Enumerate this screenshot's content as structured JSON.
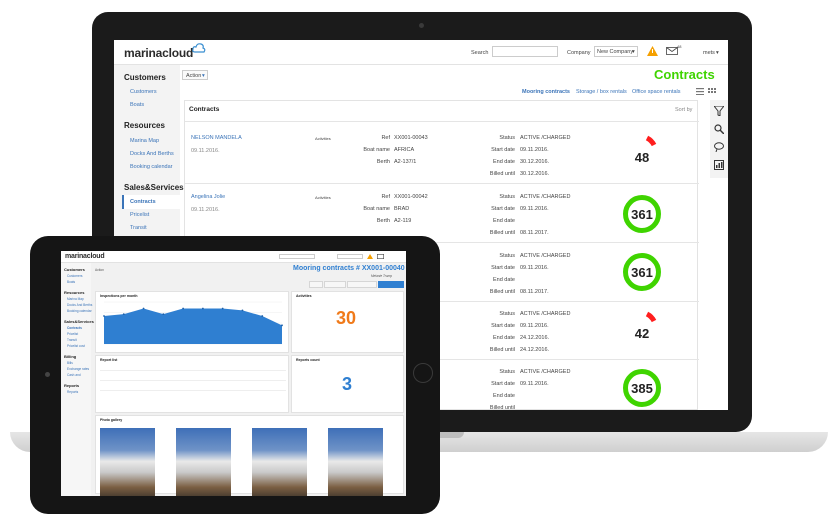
{
  "laptop": {
    "logo": "marinacloud",
    "search_label": "Search",
    "company_label": "Company",
    "company_value": "New Company",
    "mail_count": "48",
    "user": "mets",
    "action_label": "Action",
    "page_title": "Contracts",
    "tabs": [
      "Mooring contracts",
      "Storage / box rentals",
      "Office space rentals"
    ],
    "panel_title": "Contracts",
    "sort_label": "Sort by",
    "sidebar": {
      "sections": [
        {
          "title": "Customers",
          "items": [
            "Customers",
            "Boats"
          ]
        },
        {
          "title": "Resources",
          "items": [
            "Marina Map",
            "Docks And Berths",
            "Booking calendar"
          ]
        },
        {
          "title": "Sales&Services",
          "items": [
            "Contracts",
            "Pricelist",
            "Transit"
          ]
        }
      ]
    },
    "contracts": [
      {
        "name": "NELSON MANDELA",
        "date": "09.11.2016.",
        "activities": "Activities",
        "ref": "XX001-00043",
        "boat": "AFRICA",
        "berth": "A2-137/1",
        "status": "ACTIVE /CHARGED",
        "start": "09.11.2016.",
        "end": "30.12.2016.",
        "billed": "30.12.2016.",
        "days": "48"
      },
      {
        "name": "Angelina Jolie",
        "date": "09.11.2016.",
        "activities": "Activities",
        "ref": "XX001-00042",
        "boat": "BRAD",
        "berth": "A2-119",
        "status": "ACTIVE /CHARGED",
        "start": "09.11.2016.",
        "end": "",
        "billed": "08.11.2017.",
        "days": "361"
      },
      {
        "status": "ACTIVE /CHARGED",
        "start": "09.11.2016.",
        "end": "",
        "billed": "08.11.2017.",
        "days": "361"
      },
      {
        "status": "ACTIVE /CHARGED",
        "start": "09.11.2016.",
        "end": "24.12.2016.",
        "billed": "24.12.2016.",
        "days": "42"
      },
      {
        "status": "ACTIVE /CHARGED",
        "start": "09.11.2016.",
        "end": "",
        "billed": "",
        "days": "385"
      }
    ],
    "field_labels": {
      "ref": "Ref",
      "boat": "Boat name",
      "berth": "Berth",
      "status": "Status",
      "start": "Start date",
      "end": "End date",
      "billed": "Billed until"
    }
  },
  "tablet": {
    "logo": "marinacloud",
    "title": "Mooring contracts # XX001-00040",
    "subtitle": "Melanie Trump",
    "action_label": "Action",
    "sidebar": [
      {
        "title": "Customers",
        "items": [
          "Customers",
          "Boats"
        ]
      },
      {
        "title": "Resources",
        "items": [
          "Marina Map",
          "Docks And Berths",
          "Booking calendar"
        ]
      },
      {
        "title": "Sales&Services",
        "items": [
          "Contracts",
          "Pricelist",
          "Transit",
          "Pricelist cost"
        ]
      },
      {
        "title": "Billing",
        "items": [
          "Bills",
          "Exchange rates",
          "Cash and"
        ]
      },
      {
        "title": "Reports",
        "items": [
          "Reports"
        ]
      }
    ],
    "cards": {
      "inspections": "Inspections per month",
      "activities": "Activities",
      "activities_value": "30",
      "report_list": "Report list",
      "reports_count": "Reports count",
      "reports_value": "3",
      "photo_gallery": "Photo gallery"
    },
    "chart_data": {
      "type": "area",
      "x": [
        1,
        2,
        3,
        4,
        5,
        6,
        7,
        8,
        9,
        10
      ],
      "values": [
        30,
        32,
        38,
        32,
        38,
        38,
        38,
        36,
        30,
        20
      ],
      "ylim": [
        0,
        45
      ],
      "title": "",
      "xlabel": "",
      "ylabel": ""
    }
  }
}
